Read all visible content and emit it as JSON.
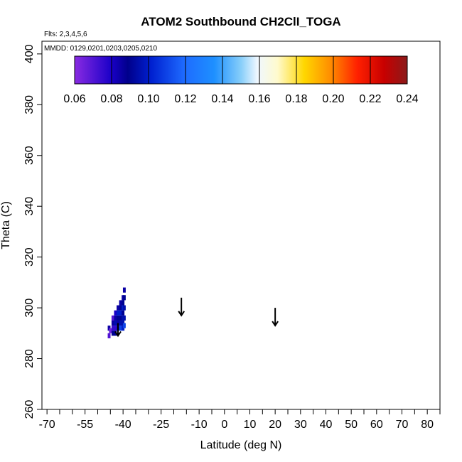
{
  "chart_data": {
    "type": "heatmap",
    "title": "ATOM2 Southbound CH2ClI_TOGA",
    "flights_note": "Flts: 2,3,4,5,6",
    "dates_note": "MMDD: 0129,0201,0203,0205,0210",
    "xlabel": "Latitude (deg N)",
    "ylabel": "Theta (C)",
    "xlim": [
      -72,
      85
    ],
    "ylim": [
      260,
      405
    ],
    "xticks": [
      -70,
      -55,
      -40,
      -25,
      -10,
      0,
      10,
      20,
      30,
      40,
      50,
      60,
      70,
      80
    ],
    "xticks_minor": [
      -65,
      -60,
      -50,
      -45,
      -35,
      -30,
      -20,
      -15,
      -5,
      5,
      15,
      25,
      35,
      45,
      55,
      65,
      75,
      85
    ],
    "yticks": [
      260,
      280,
      300,
      320,
      340,
      360,
      380,
      400
    ],
    "colorbar": {
      "min": 0.06,
      "max": 0.24,
      "ticks": [
        0.06,
        0.08,
        0.1,
        0.12,
        0.14,
        0.16,
        0.18,
        0.2,
        0.22,
        0.24
      ],
      "tick_labels": [
        "0.06",
        "0.08",
        "0.10",
        "0.12",
        "0.14",
        "0.16",
        "0.18",
        "0.20",
        "0.22",
        "0.24"
      ],
      "stops": [
        [
          0.0,
          "#8a2be2"
        ],
        [
          0.11,
          "#1a00c8"
        ],
        [
          0.16,
          "#00008b"
        ],
        [
          0.23,
          "#0020d0"
        ],
        [
          0.33,
          "#1e6bff"
        ],
        [
          0.42,
          "#1e90ff"
        ],
        [
          0.5,
          "#87cefa"
        ],
        [
          0.55,
          "#f0f8ff"
        ],
        [
          0.61,
          "#fffacd"
        ],
        [
          0.69,
          "#ffd700"
        ],
        [
          0.77,
          "#ff8c00"
        ],
        [
          0.85,
          "#ff2000"
        ],
        [
          0.93,
          "#c80000"
        ],
        [
          1.0,
          "#8b1a1a"
        ]
      ]
    },
    "series": [
      {
        "values": [
          {
            "x": -45.5,
            "y": 289,
            "v": 0.07
          },
          {
            "x": -45.5,
            "y": 292,
            "v": 0.085
          },
          {
            "x": -45.0,
            "y": 291,
            "v": 0.065
          },
          {
            "x": -44.0,
            "y": 290,
            "v": 0.09
          },
          {
            "x": -44.0,
            "y": 292,
            "v": 0.075
          },
          {
            "x": -44.0,
            "y": 294,
            "v": 0.085
          },
          {
            "x": -44.0,
            "y": 296,
            "v": 0.07
          },
          {
            "x": -43.0,
            "y": 290,
            "v": 0.09
          },
          {
            "x": -43.0,
            "y": 292,
            "v": 0.075
          },
          {
            "x": -43.0,
            "y": 294,
            "v": 0.095
          },
          {
            "x": -43.0,
            "y": 296,
            "v": 0.085
          },
          {
            "x": -43.0,
            "y": 298,
            "v": 0.08
          },
          {
            "x": -42.0,
            "y": 292,
            "v": 0.095
          },
          {
            "x": -42.0,
            "y": 294,
            "v": 0.085
          },
          {
            "x": -42.0,
            "y": 296,
            "v": 0.09
          },
          {
            "x": -42.0,
            "y": 298,
            "v": 0.1
          },
          {
            "x": -42.0,
            "y": 300,
            "v": 0.085
          },
          {
            "x": -41.0,
            "y": 292,
            "v": 0.11
          },
          {
            "x": -41.0,
            "y": 294,
            "v": 0.095
          },
          {
            "x": -41.0,
            "y": 296,
            "v": 0.09
          },
          {
            "x": -41.0,
            "y": 298,
            "v": 0.1
          },
          {
            "x": -41.0,
            "y": 300,
            "v": 0.09
          },
          {
            "x": -41.0,
            "y": 302,
            "v": 0.085
          },
          {
            "x": -40.0,
            "y": 292,
            "v": 0.1
          },
          {
            "x": -40.0,
            "y": 294,
            "v": 0.095
          },
          {
            "x": -40.0,
            "y": 296,
            "v": 0.095
          },
          {
            "x": -40.0,
            "y": 298,
            "v": 0.09
          },
          {
            "x": -40.0,
            "y": 300,
            "v": 0.1
          },
          {
            "x": -40.0,
            "y": 302,
            "v": 0.09
          },
          {
            "x": -40.0,
            "y": 304,
            "v": 0.085
          },
          {
            "x": -39.5,
            "y": 293,
            "v": 0.11
          },
          {
            "x": -39.5,
            "y": 296,
            "v": 0.095
          },
          {
            "x": -39.5,
            "y": 300,
            "v": 0.095
          },
          {
            "x": -39.5,
            "y": 304,
            "v": 0.09
          },
          {
            "x": -39.5,
            "y": 307,
            "v": 0.085
          }
        ]
      }
    ],
    "annotations": [
      {
        "type": "arrow-down",
        "x": -42.0,
        "y_top": 294,
        "y_bottom": 289
      },
      {
        "type": "arrow-down",
        "x": -17.0,
        "y_top": 304,
        "y_bottom": 297
      },
      {
        "type": "arrow-down",
        "x": 20.0,
        "y_top": 300,
        "y_bottom": 293
      }
    ]
  }
}
